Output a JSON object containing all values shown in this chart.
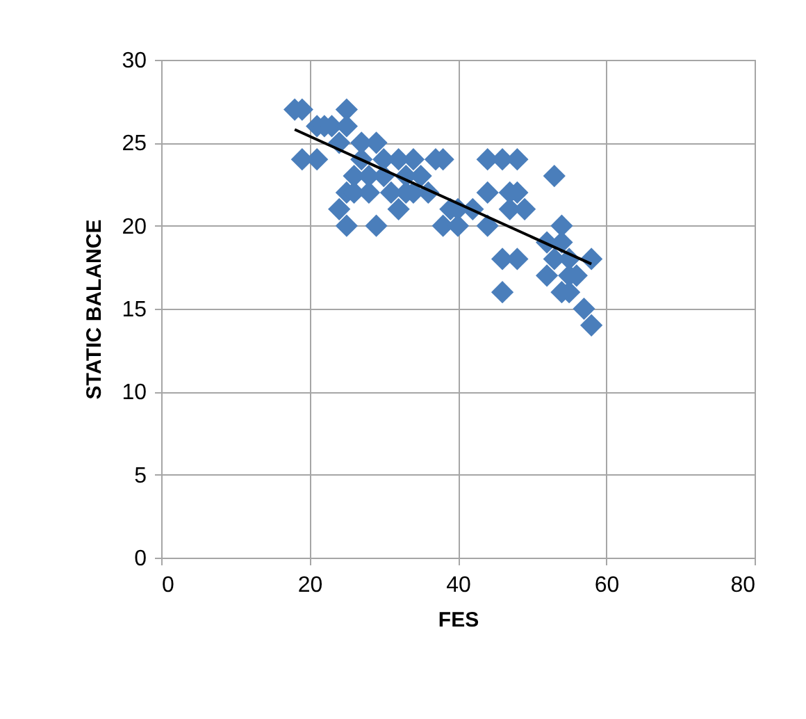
{
  "chart_data": {
    "type": "scatter",
    "xlabel": "FES",
    "ylabel": "STATIC BALANCE",
    "xlim": [
      0,
      80
    ],
    "xticks": [
      0,
      20,
      40,
      60,
      80
    ],
    "ylim": [
      0,
      30
    ],
    "yticks": [
      0,
      5,
      10,
      15,
      20,
      25,
      30
    ],
    "grid": true,
    "marker": "diamond",
    "series": [
      {
        "color": "#4a7ebb",
        "x": [
          18,
          19,
          19,
          21,
          21,
          22,
          23,
          24,
          25,
          25,
          24,
          25,
          25,
          26,
          26,
          27,
          27,
          28,
          28,
          29,
          29,
          30,
          30,
          31,
          32,
          32,
          33,
          33,
          34,
          34,
          35,
          36,
          37,
          38,
          38,
          39,
          40,
          40,
          42,
          44,
          44,
          44,
          46,
          46,
          46,
          47,
          47,
          48,
          48,
          48,
          49,
          53,
          52,
          52,
          53,
          54,
          54,
          55,
          55,
          56,
          57,
          58,
          58,
          54,
          55
        ],
        "values": [
          27,
          27,
          24,
          24,
          26,
          26,
          26,
          25,
          27,
          26,
          21,
          20,
          22,
          23,
          22,
          24,
          25,
          23,
          22,
          25,
          20,
          24,
          23,
          22,
          24,
          21,
          23,
          22,
          24,
          22,
          23,
          22,
          24,
          24,
          20,
          21,
          20,
          21,
          21,
          24,
          22,
          20,
          24,
          18,
          16,
          21,
          22,
          24,
          22,
          18,
          21,
          23,
          19,
          17,
          18,
          20,
          16,
          17,
          18,
          17,
          15,
          18,
          14,
          19,
          16
        ]
      },
      {
        "type": "line",
        "marker": "none",
        "color": "#000000",
        "x": [
          18,
          58
        ],
        "values": [
          25.8,
          17.7
        ]
      }
    ]
  }
}
